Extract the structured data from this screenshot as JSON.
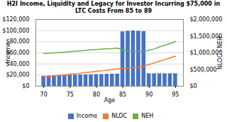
{
  "chart_data": {
    "type": "bar",
    "title": "H2I Income, Liquidity and Legacy for Investor Incurring $75,000 in LTC Costs From 85 to 89",
    "xlabel": "Age",
    "ylabel": "Income",
    "y2label": "NLOC - NEH",
    "x": [
      70,
      71,
      72,
      73,
      74,
      75,
      76,
      77,
      78,
      79,
      80,
      81,
      82,
      83,
      84,
      85,
      86,
      87,
      88,
      89,
      90,
      91,
      92,
      93,
      94,
      95
    ],
    "series": [
      {
        "name": "Income",
        "type": "bar",
        "color": "#4472C4",
        "values": [
          18000,
          18500,
          19000,
          19500,
          19800,
          20000,
          20200,
          20400,
          20600,
          20800,
          21000,
          21200,
          21500,
          21800,
          22000,
          98000,
          99000,
          99500,
          99000,
          98500,
          22500,
          22500,
          22500,
          22500,
          22500,
          22500
        ]
      },
      {
        "name": "NLOC",
        "type": "line",
        "color": "#ED7D31",
        "axis": "y2",
        "values": [
          280000,
          295000,
          310000,
          325000,
          340000,
          360000,
          375000,
          390000,
          410000,
          425000,
          445000,
          460000,
          480000,
          500000,
          520000,
          530000,
          545000,
          560000,
          580000,
          600000,
          650000,
          700000,
          750000,
          800000,
          850000,
          900000
        ]
      },
      {
        "name": "NEH",
        "type": "line",
        "color": "#70AD47",
        "axis": "y2",
        "values": [
          980000,
          990000,
          1000000,
          1010000,
          1020000,
          1035000,
          1050000,
          1060000,
          1075000,
          1090000,
          1100000,
          1110000,
          1120000,
          1130000,
          1145000,
          1080000,
          1060000,
          1050000,
          1045000,
          1040000,
          1080000,
          1120000,
          1180000,
          1230000,
          1280000,
          1340000
        ]
      }
    ],
    "xlim": [
      68.5,
      96.5
    ],
    "xticks": [
      70,
      75,
      80,
      85,
      90,
      95
    ],
    "ylim": [
      0,
      120000
    ],
    "yticks": [
      {
        "value": 0,
        "label": "$0"
      },
      {
        "value": 20000,
        "label": "$20,000"
      },
      {
        "value": 40000,
        "label": "$40,000"
      },
      {
        "value": 60000,
        "label": "$60,000"
      },
      {
        "value": 80000,
        "label": "$80,000"
      },
      {
        "value": 100000,
        "label": "$100,000"
      },
      {
        "value": 120000,
        "label": "$120,000"
      }
    ],
    "y2lim": [
      0,
      2000000
    ],
    "y2ticks": [
      {
        "value": 0,
        "label": "$0"
      },
      {
        "value": 500000,
        "label": "$500,000"
      },
      {
        "value": 1000000,
        "label": "$1,000,000"
      },
      {
        "value": 1500000,
        "label": "$1,500,000"
      },
      {
        "value": 2000000,
        "label": "$2,000,000"
      }
    ],
    "grid": true,
    "legend": "bottom"
  }
}
